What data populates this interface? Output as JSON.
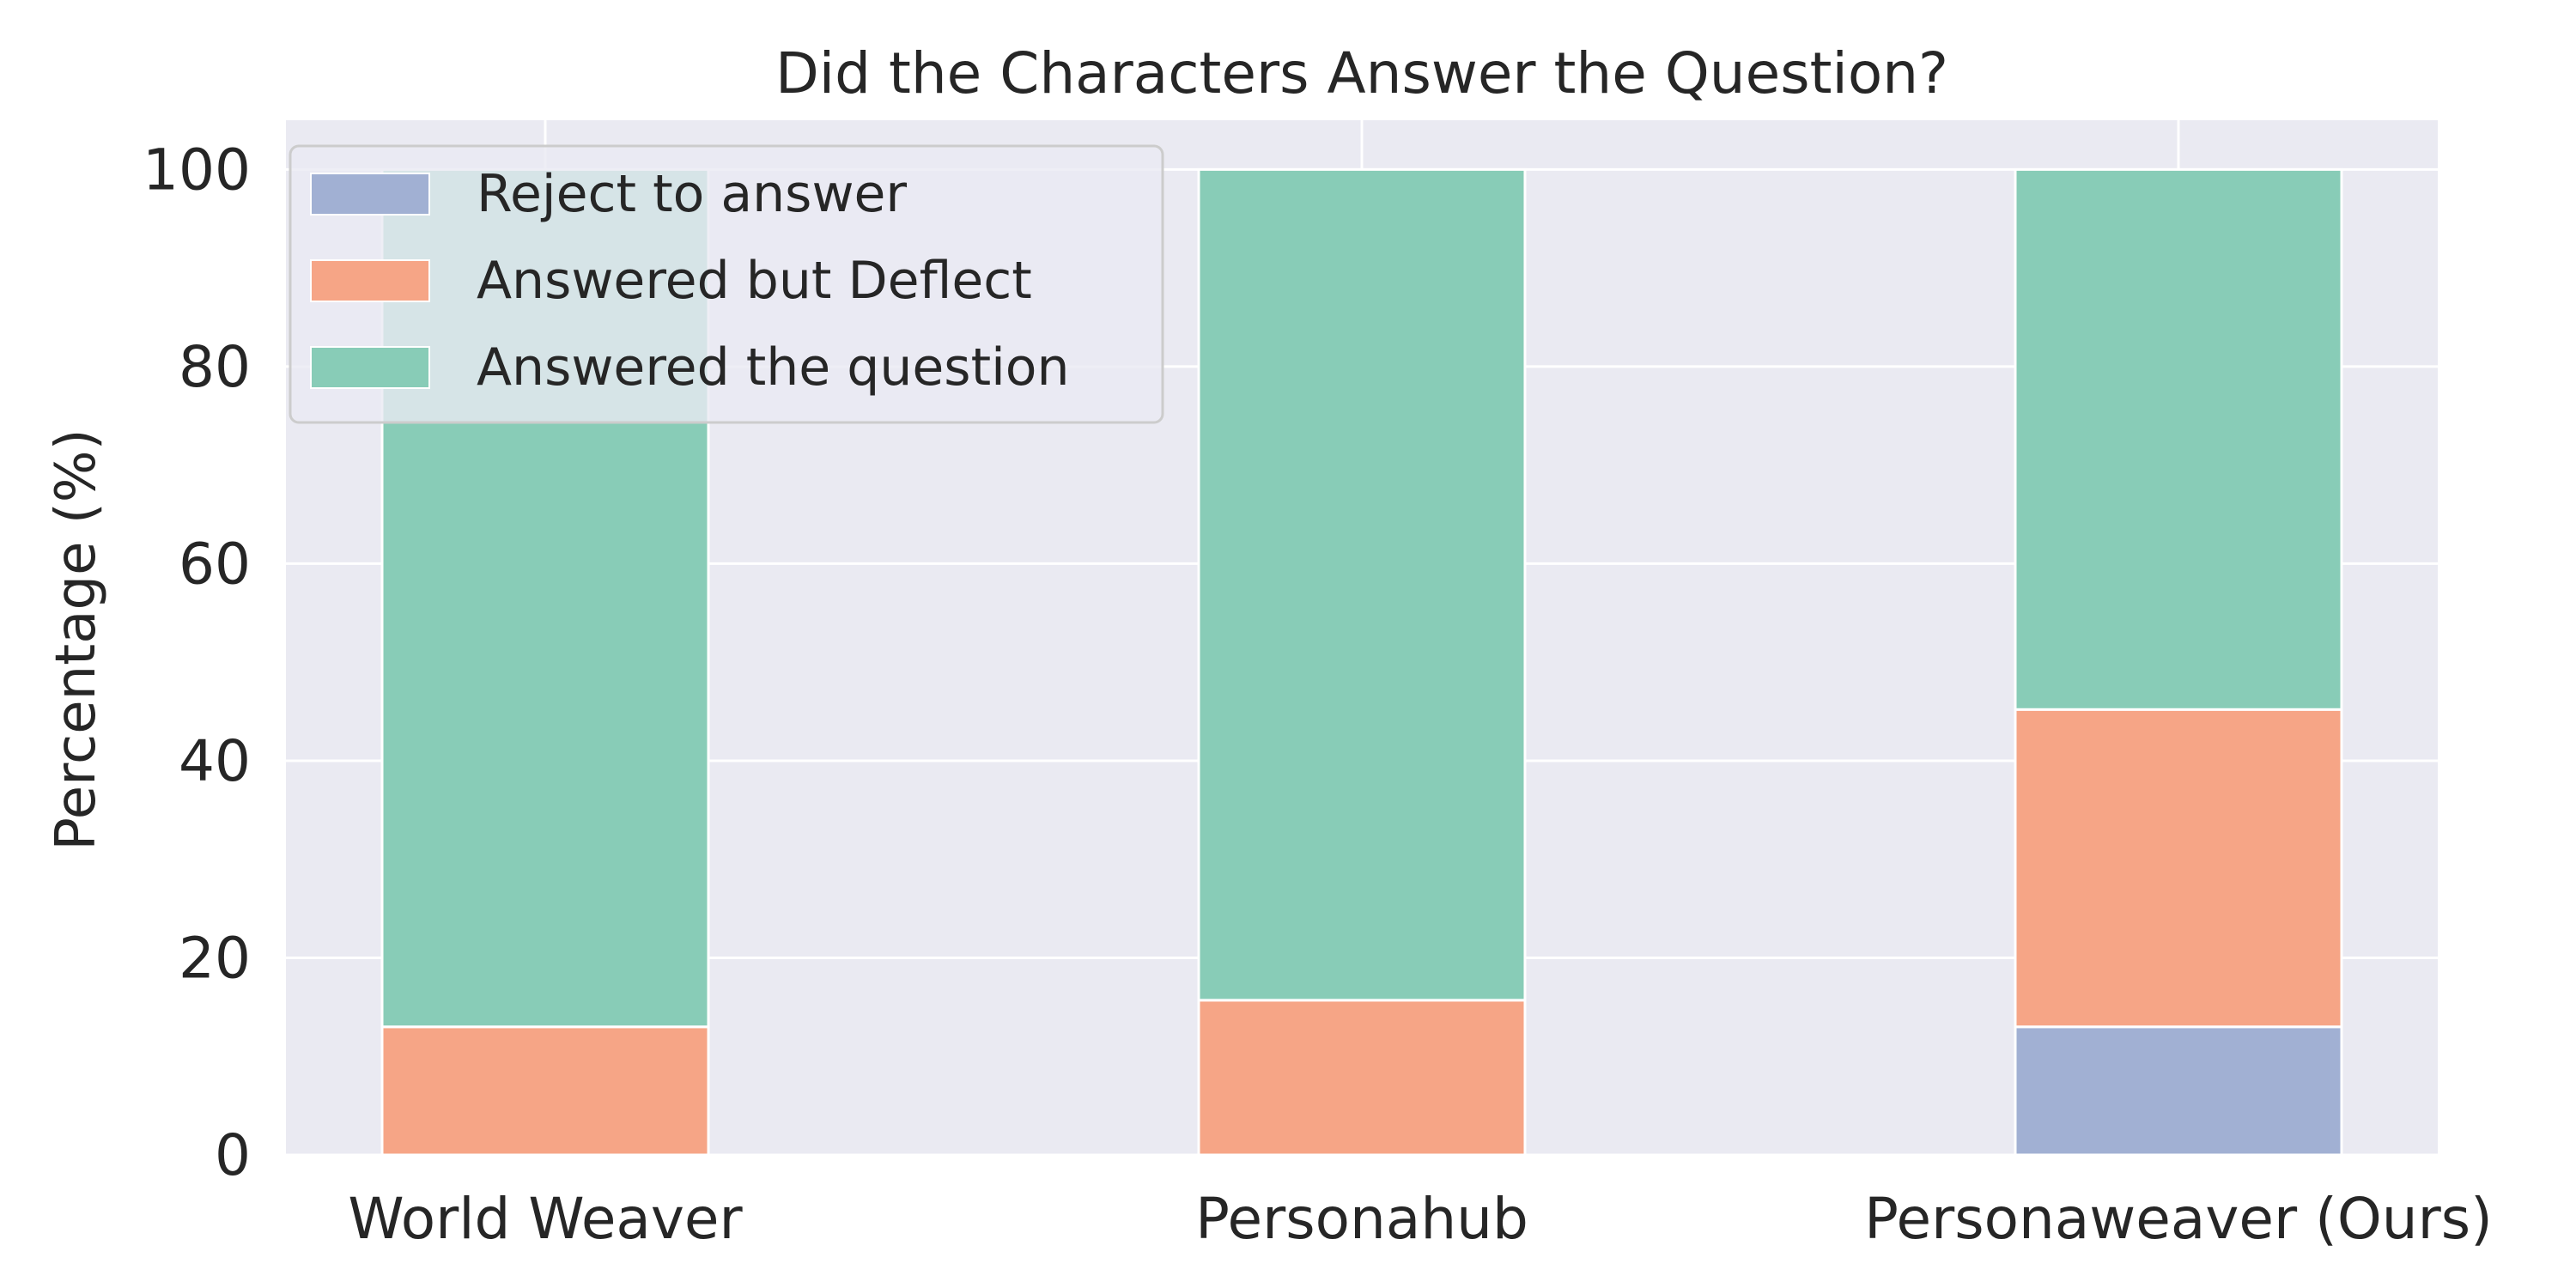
{
  "chart_data": {
    "type": "bar",
    "stacked": true,
    "title": "Did the Characters Answer the Question?",
    "xlabel": "",
    "ylabel": "Percentage (%)",
    "ylim": [
      0,
      105
    ],
    "yticks": [
      "0",
      "20",
      "40",
      "60",
      "80",
      "100"
    ],
    "grid": true,
    "legend_position": "top-left",
    "categories": [
      "World Weaver",
      "Personahub",
      "Personaweaver (Ours)"
    ],
    "series": [
      {
        "name": "Reject to answer",
        "color": "#a1b0d3",
        "values": [
          0,
          0,
          13
        ]
      },
      {
        "name": "Answered but Deflect",
        "color": "#f6a586",
        "values": [
          13,
          15.7,
          32.2
        ]
      },
      {
        "name": "Answered the question",
        "color": "#88ccb7",
        "values": [
          87,
          84.3,
          54.8
        ]
      }
    ]
  }
}
